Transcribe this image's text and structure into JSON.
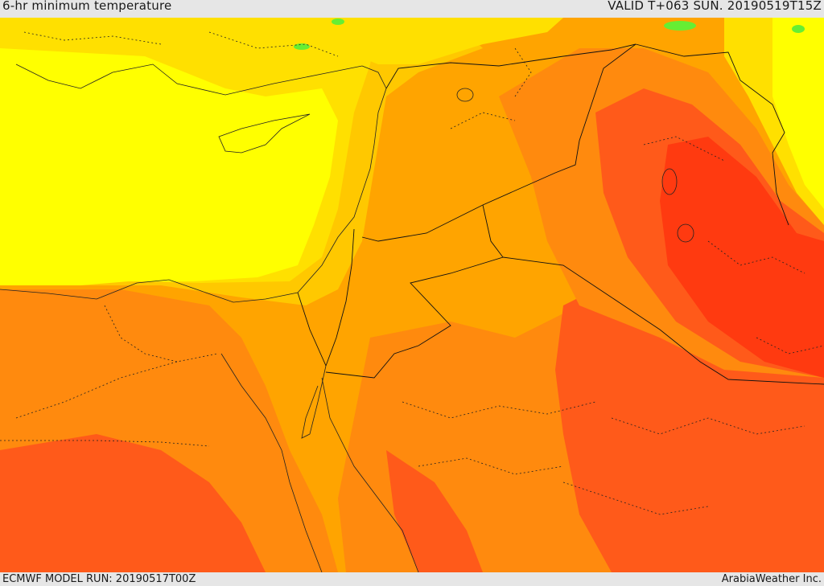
{
  "header": {
    "title": "6-hr minimum temperature",
    "valid": "VALID T+063 SUN. 20190519T15Z"
  },
  "footer": {
    "model_run": "ECMWF MODEL RUN: 20190517T00Z",
    "credit": "ArabiaWeather Inc."
  },
  "palette": {
    "hot": "#ff3a10",
    "warm_red": "#ff5a1a",
    "orange": "#ff8a0e",
    "light_orange": "#ffa400",
    "amber": "#ffc800",
    "yellow_orange": "#ffe000",
    "yellow": "#ffff00",
    "green": "#66ee33"
  }
}
